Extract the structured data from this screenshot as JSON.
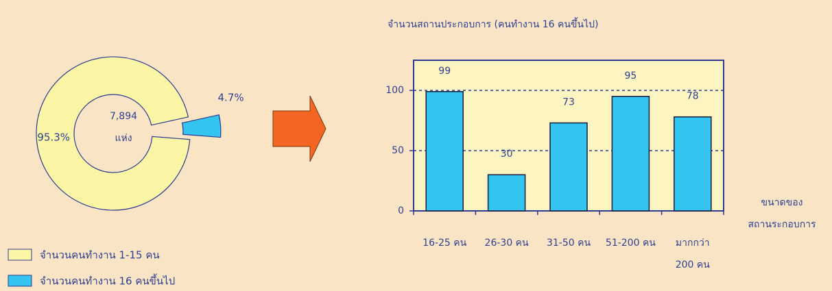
{
  "chart_data": [
    {
      "type": "pie",
      "categories": [
        "จำนวนคนทำงาน 1-15 คน",
        "จำนวนคนทำงาน  16 คนขึ้นไป"
      ],
      "values": [
        95.3,
        4.7
      ],
      "value_labels": [
        "95.3%",
        "4.7%"
      ],
      "colors": [
        "#fbf5a6",
        "#33c5f0"
      ],
      "center_label": [
        "7,894",
        "แห่ง"
      ],
      "legend": "bottom-left"
    },
    {
      "type": "bar",
      "title": "จำนวนสถานประกอบการ (คนทำงาน  16 คนขึ้นไป)",
      "x_label": "ขนาดของ\nสถานระกอบการ",
      "categories": [
        "16-25 คน",
        "26-30 คน",
        "31-50 คน",
        "51-200 คน",
        "มากกว่า\n200 คน"
      ],
      "values": [
        99,
        30,
        73,
        95,
        78
      ],
      "color": "#33c5f0",
      "ylim": [
        0,
        125
      ],
      "yticks": [
        0,
        50,
        100
      ],
      "grid": true
    }
  ]
}
